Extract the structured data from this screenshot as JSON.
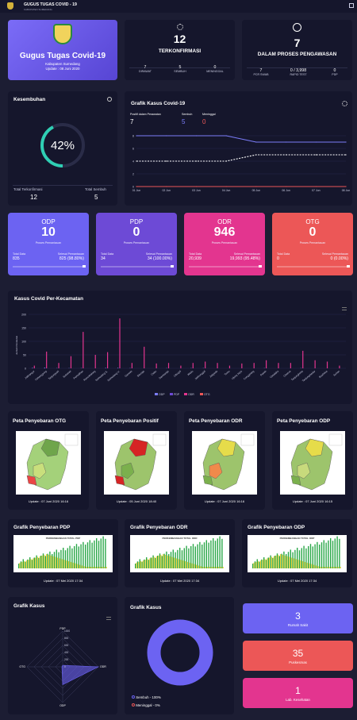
{
  "header": {
    "title": "GUGUS TUGAS COVID - 19",
    "subtitle": "KABUPATEN SUMEDANG"
  },
  "hero": {
    "title": "Gugus Tugas Covid-19",
    "region": "Kabupaten Sumedang",
    "update": "Update : 08 Juni 2020"
  },
  "confirmed": {
    "value": "12",
    "label": "TERKONFIRMASI",
    "stats": [
      {
        "v": "7",
        "l": "DIRAWAT"
      },
      {
        "v": "5",
        "l": "SEMBUH"
      },
      {
        "v": "0",
        "l": "MENINGGAL"
      }
    ]
  },
  "monitoring": {
    "value": "7",
    "label": "DALAM PROSES PENGAWASAN",
    "stats": [
      {
        "v": "7",
        "l": "PCR SWAB"
      },
      {
        "v": "0 / 3,998",
        "l": "RAPID TEST"
      },
      {
        "v": "0",
        "l": "PDP"
      }
    ]
  },
  "recovery": {
    "title": "Kesembuhan",
    "percent": "42%",
    "total_label": "Total Terkonfirmasi",
    "total_value": "12",
    "recovered_label": "Total Sembuh",
    "recovered_value": "5"
  },
  "trend": {
    "title": "Grafik Kasus Covid-19",
    "legend": [
      {
        "label": "Positif dalam Perawatan",
        "value": "7"
      },
      {
        "label": "Sembuh",
        "value": "5"
      },
      {
        "label": "Meninggal",
        "value": "0"
      }
    ],
    "chart_data": {
      "type": "line",
      "x": [
        "01 Jun",
        "02 Jun",
        "03 Jun",
        "04 Jun",
        "05 Jun",
        "06 Jun",
        "07 Jun",
        "08 Jun"
      ],
      "yticks": [
        "0",
        "2",
        "4",
        "6",
        "8"
      ],
      "ylim": [
        0,
        8
      ],
      "series": [
        {
          "name": "Positif dalam Perawatan",
          "values": [
            8,
            8,
            8,
            8,
            7,
            7,
            7,
            7
          ]
        },
        {
          "name": "Sembuh",
          "values": [
            4,
            4,
            4,
            4,
            5,
            5,
            5,
            5
          ]
        },
        {
          "name": "Meninggal",
          "values": [
            0,
            0,
            0,
            0,
            0,
            0,
            0,
            0
          ]
        }
      ]
    }
  },
  "cards": [
    {
      "title": "ODP",
      "value": "10",
      "sub": "Proses Pemantauan",
      "left_label": "Total Data",
      "left_value": "835",
      "right_label": "Selesai Pemantauan",
      "right_value": "825 (98.80%)",
      "color": "#6c63f2"
    },
    {
      "title": "PDP",
      "value": "0",
      "sub": "Proses Pemantauan",
      "left_label": "Total Data",
      "left_value": "34",
      "right_label": "Selesai Pemantauan",
      "right_value": "34 (100.00%)",
      "color": "#6d4ad6"
    },
    {
      "title": "ODR",
      "value": "946",
      "sub": "Proses Pemantauan",
      "left_label": "Total Data",
      "left_value": "20,939",
      "right_label": "Selesai Pemantauan",
      "right_value": "19,993 (95.48%)",
      "color": "#e3358f"
    },
    {
      "title": "OTG",
      "value": "0",
      "sub": "Proses Pemantauan",
      "left_label": "Total Data",
      "left_value": "0",
      "right_label": "Selesai Pemantauan",
      "right_value": "0 (0.00%)",
      "color": "#ec5757"
    }
  ],
  "kecamatan": {
    "title": "Kasus Covid Per-Kecamatan",
    "ylabel": "Jumlah Penduduk",
    "chart_data": {
      "type": "bar",
      "categories": [
        "Jatinangor",
        "Cimanggung",
        "Tanjungsari",
        "Sukasari",
        "Pamulihan",
        "Rancakalong",
        "Sumedang S.",
        "Sumedang U.",
        "Ganeas",
        "Situraja",
        "Cisitu",
        "Darmaraja",
        "Cibugel",
        "Wado",
        "Jatinunggal",
        "Jatigede",
        "Tomo",
        "Ujung Jaya",
        "Conggeang",
        "Paseh",
        "Cimalaka",
        "Cisarua",
        "Tanjungkerta",
        "Tanjungmedar",
        "Buahdua",
        "Surian"
      ],
      "yticks": [
        "0",
        "50",
        "100",
        "150",
        "200"
      ],
      "ylim": [
        0,
        200
      ],
      "series": [
        {
          "name": "ODP",
          "values": [
            2,
            3,
            1,
            1,
            1,
            0,
            2,
            2,
            1,
            0,
            0,
            1,
            0,
            1,
            1,
            0,
            0,
            0,
            0,
            1,
            0,
            0,
            1,
            0,
            0,
            0
          ]
        },
        {
          "name": "PDP",
          "values": [
            0,
            0,
            0,
            0,
            0,
            0,
            0,
            0,
            0,
            0,
            0,
            0,
            0,
            0,
            0,
            0,
            0,
            0,
            0,
            0,
            0,
            0,
            0,
            0,
            0,
            0
          ]
        },
        {
          "name": "ODR",
          "values": [
            10,
            62,
            20,
            45,
            135,
            50,
            60,
            185,
            20,
            80,
            18,
            20,
            10,
            20,
            25,
            20,
            10,
            18,
            20,
            30,
            20,
            20,
            65,
            30,
            25,
            10
          ]
        },
        {
          "name": "OTG",
          "values": [
            0,
            0,
            0,
            0,
            0,
            0,
            0,
            0,
            0,
            0,
            0,
            0,
            0,
            0,
            0,
            0,
            0,
            0,
            0,
            0,
            0,
            0,
            0,
            0,
            0,
            0
          ]
        }
      ]
    }
  },
  "maps": [
    {
      "title": "Peta Penyebaran OTG",
      "update": "Update : 07 Juni 2020 16:16"
    },
    {
      "title": "Peta Penyebaran Positif",
      "update": "Update : 05 Juni 2020 18:40"
    },
    {
      "title": "Peta Penyebaran ODR",
      "update": "Update : 07 Juni 2020 16:16"
    },
    {
      "title": "Peta Penyebaran ODP",
      "update": "Update : 07 Juni 2020 16:15"
    }
  ],
  "spread": [
    {
      "title": "Grafik Penyebaran PDP",
      "inner": "PERKEMBANGAN TOTAL PDP",
      "update": "Update : 07 Mei 2020 17:34"
    },
    {
      "title": "Grafik Penyebaran ODR",
      "inner": "PERKEMBANGAN TOTAL ODR",
      "update": "Update : 07 Mei 2020 17:34"
    },
    {
      "title": "Grafik Penyebaran ODP",
      "inner": "PERKEMBANGAN TOTAL ODP",
      "update": "Update : 07 Mei 2020 17:34"
    }
  ],
  "radar": {
    "title": "Grafik Kasus",
    "axes": [
      "PDP",
      "ODR",
      "ODP",
      "OTG"
    ],
    "ticks": [
      "1000",
      "800",
      "600",
      "400",
      "200",
      "0"
    ]
  },
  "donut": {
    "title": "Grafik Kasus",
    "legend": [
      {
        "label": "Sembuh",
        "value": "100%"
      },
      {
        "label": "Meninggal",
        "value": "0%"
      }
    ]
  },
  "facilities": [
    {
      "value": "3",
      "label": "Rumah Sakit",
      "color": "#6c63f2"
    },
    {
      "value": "35",
      "label": "Puskesmas",
      "color": "#ec5757"
    },
    {
      "value": "1",
      "label": "Lab. Kesehatan",
      "color": "#e3358f"
    }
  ]
}
